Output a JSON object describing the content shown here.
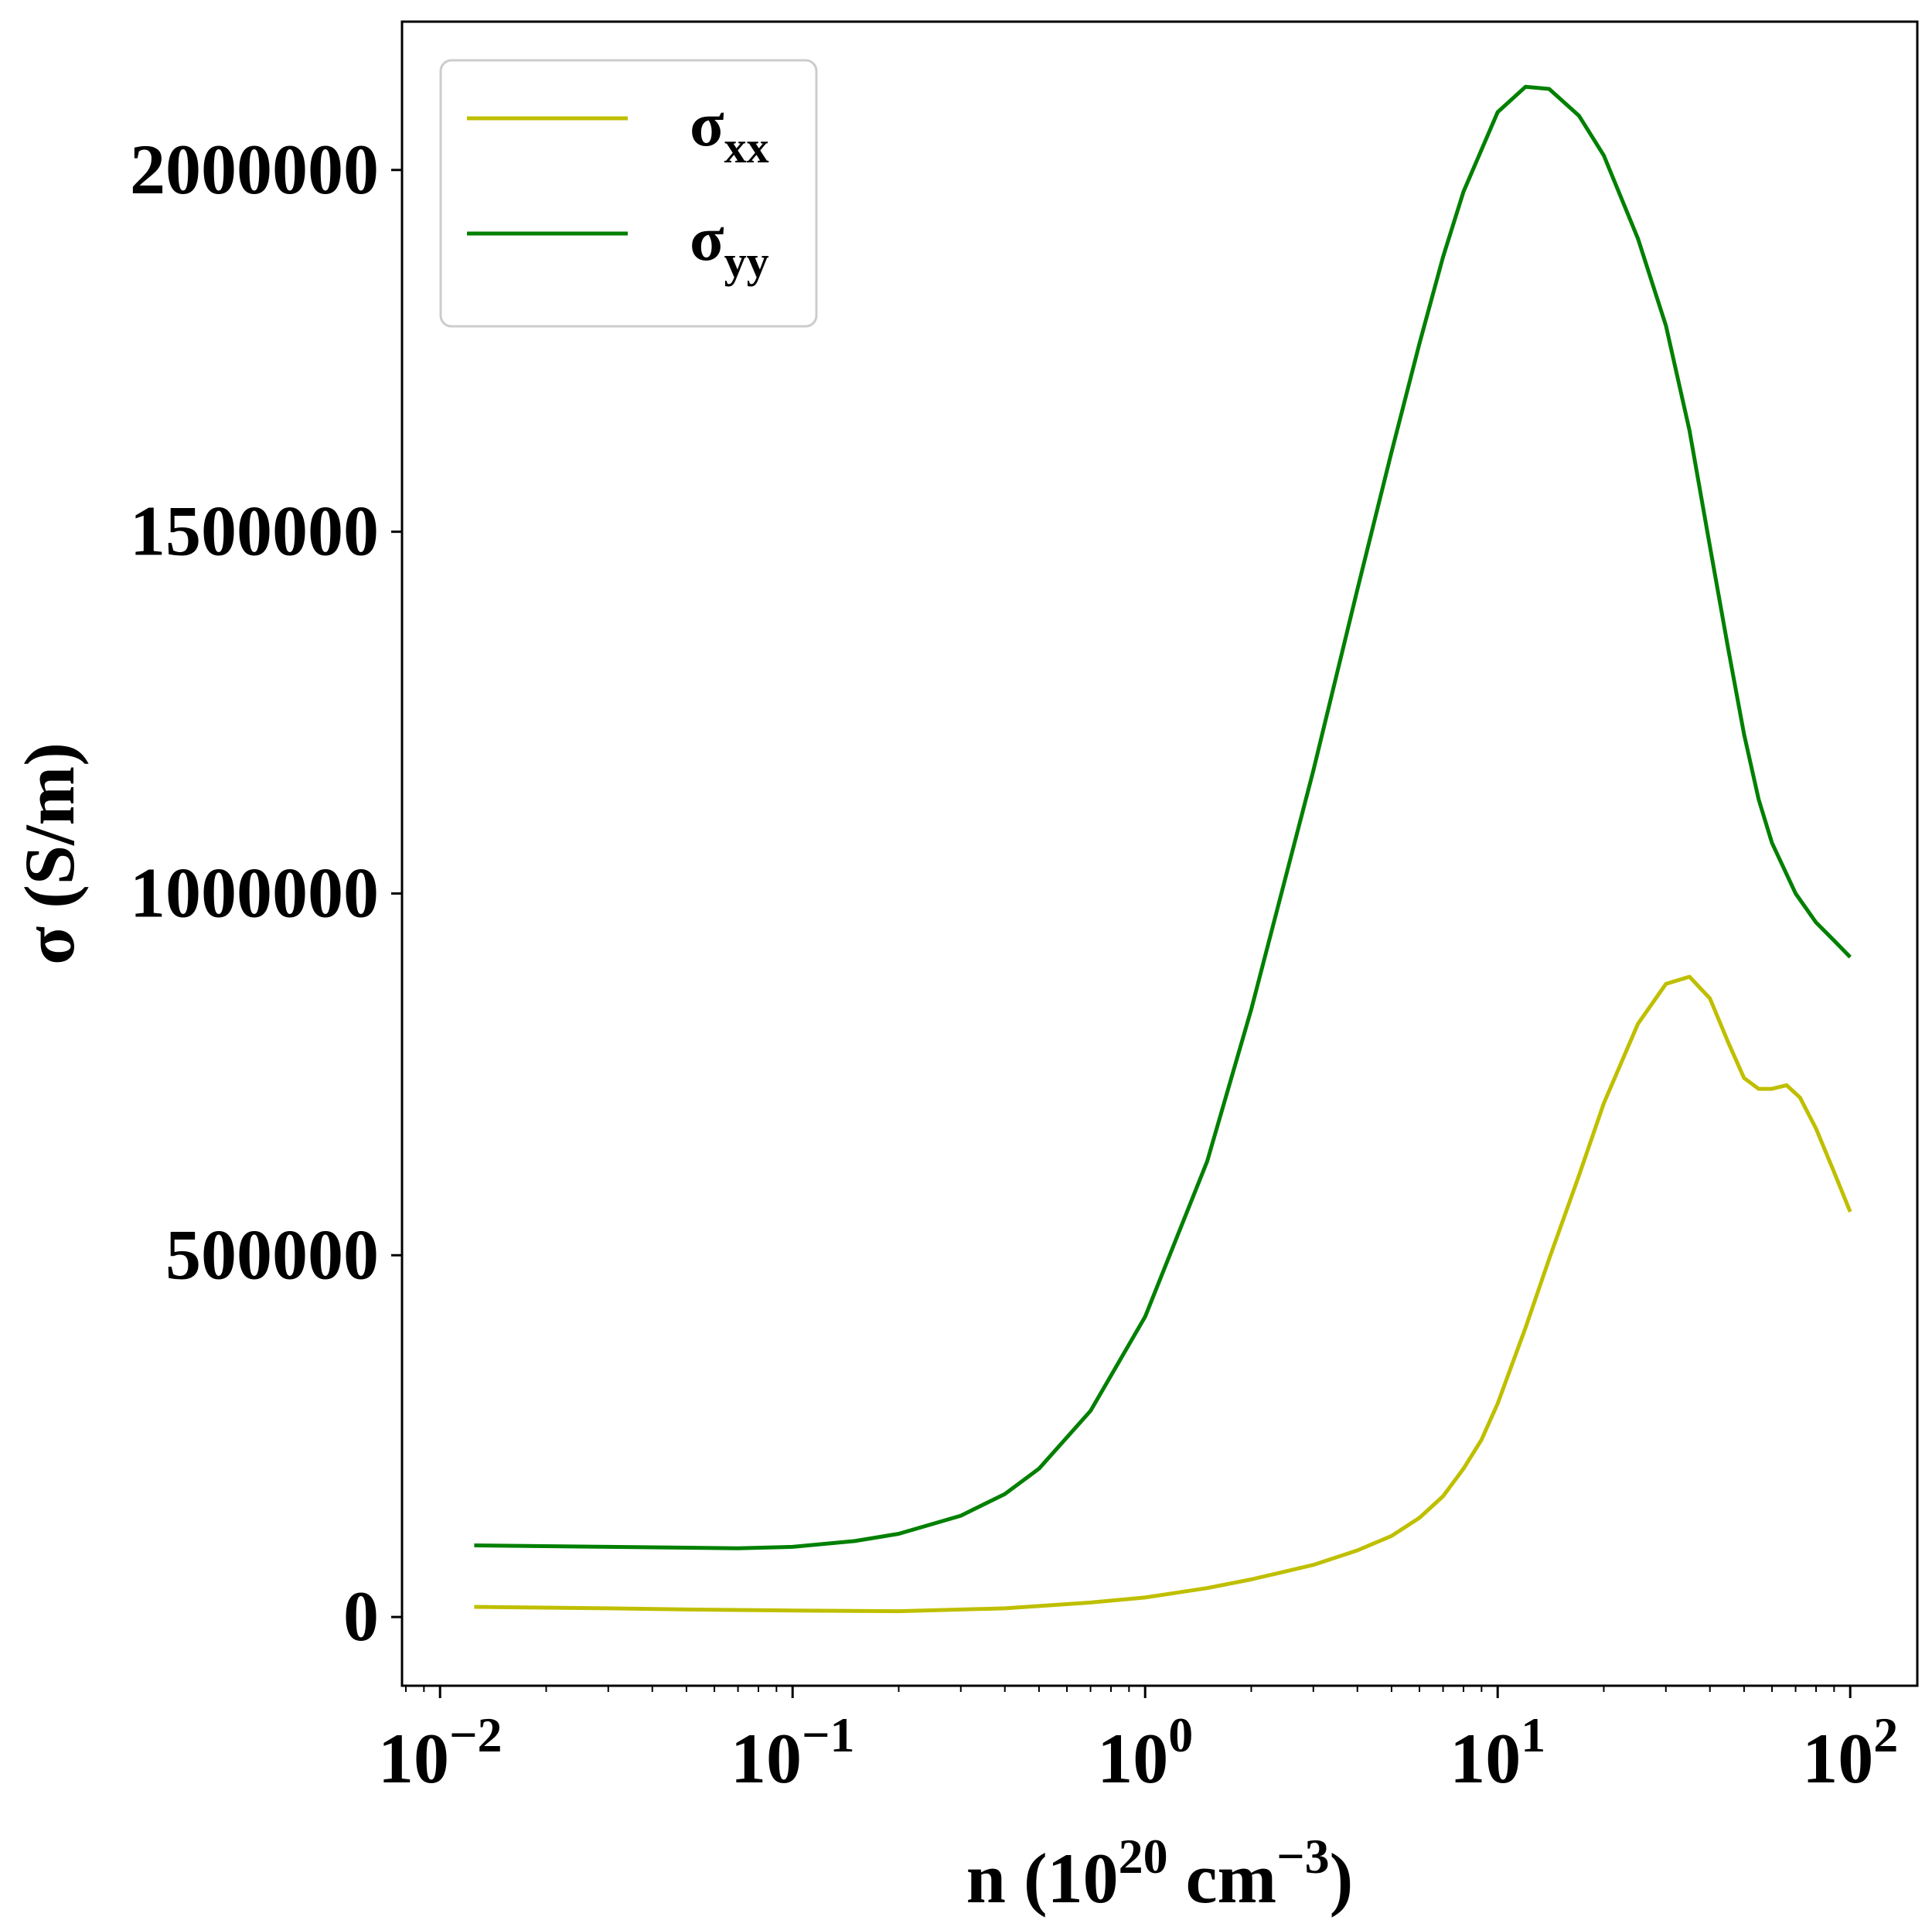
{
  "chart_data": {
    "type": "line",
    "title": "",
    "xlabel": {
      "base": "n (10",
      "sup1": "20",
      "mid": " cm",
      "sup2": "−3",
      "end": ")"
    },
    "ylabel": "σ (S/m)",
    "xscale": "log",
    "xlim": [
      0.0078,
      155
    ],
    "ylim": [
      -95000,
      2205000
    ],
    "grid": false,
    "legend_position": "top-left",
    "x_ticks": [
      {
        "value": 0.01,
        "base": "10",
        "exp": "−2"
      },
      {
        "value": 0.1,
        "base": "10",
        "exp": "−1"
      },
      {
        "value": 1,
        "base": "10",
        "exp": "0"
      },
      {
        "value": 10,
        "base": "10",
        "exp": "1"
      },
      {
        "value": 100,
        "base": "10",
        "exp": "2"
      }
    ],
    "y_ticks": [
      {
        "value": 0,
        "label": "0"
      },
      {
        "value": 500000,
        "label": "500000"
      },
      {
        "value": 1000000,
        "label": "1000000"
      },
      {
        "value": 1500000,
        "label": "1500000"
      },
      {
        "value": 2000000,
        "label": "2000000"
      }
    ],
    "series": [
      {
        "name": "σxx",
        "legend_main": "σ",
        "legend_sub": "xx",
        "color": "#bfbf00",
        "x": [
          0.0125,
          0.03,
          0.06,
          0.1,
          0.2,
          0.4,
          0.7,
          1.0,
          1.5,
          2.0,
          3.0,
          4.0,
          5.0,
          6.0,
          7.0,
          8.0,
          9.0,
          10.0,
          12.0,
          14.0,
          17.0,
          20.0,
          25.0,
          30.0,
          35.0,
          40.0,
          45.0,
          50.0,
          55.0,
          60.0,
          66.0,
          72.0,
          80.0,
          90.0,
          100.0
        ],
        "y": [
          14000,
          12000,
          10000,
          9000,
          8000,
          12000,
          20000,
          27000,
          40000,
          52000,
          72000,
          92000,
          112000,
          137000,
          167000,
          205000,
          245000,
          295000,
          400000,
          495000,
          610000,
          710000,
          820000,
          875000,
          885000,
          855000,
          795000,
          745000,
          730000,
          730000,
          735000,
          718000,
          675000,
          615000,
          560000
        ]
      },
      {
        "name": "σyy",
        "legend_main": "σ",
        "legend_sub": "yy",
        "color": "#008000",
        "x": [
          0.0125,
          0.03,
          0.07,
          0.1,
          0.15,
          0.2,
          0.3,
          0.4,
          0.5,
          0.7,
          1.0,
          1.5,
          2.0,
          3.0,
          4.0,
          5.0,
          6.0,
          7.0,
          8.0,
          10.0,
          12.0,
          14.0,
          17.0,
          20.0,
          25.0,
          30.0,
          35.0,
          40.0,
          45.0,
          50.0,
          55.0,
          60.0,
          70.0,
          80.0,
          90.0,
          100.0
        ],
        "y": [
          99000,
          97000,
          95000,
          97000,
          105000,
          115000,
          140000,
          170000,
          205000,
          285000,
          415000,
          630000,
          840000,
          1170000,
          1420000,
          1610000,
          1760000,
          1880000,
          1970000,
          2080000,
          2115000,
          2112000,
          2075000,
          2020000,
          1905000,
          1785000,
          1640000,
          1480000,
          1340000,
          1220000,
          1130000,
          1070000,
          1000000,
          960000,
          935000,
          912000
        ]
      }
    ]
  }
}
